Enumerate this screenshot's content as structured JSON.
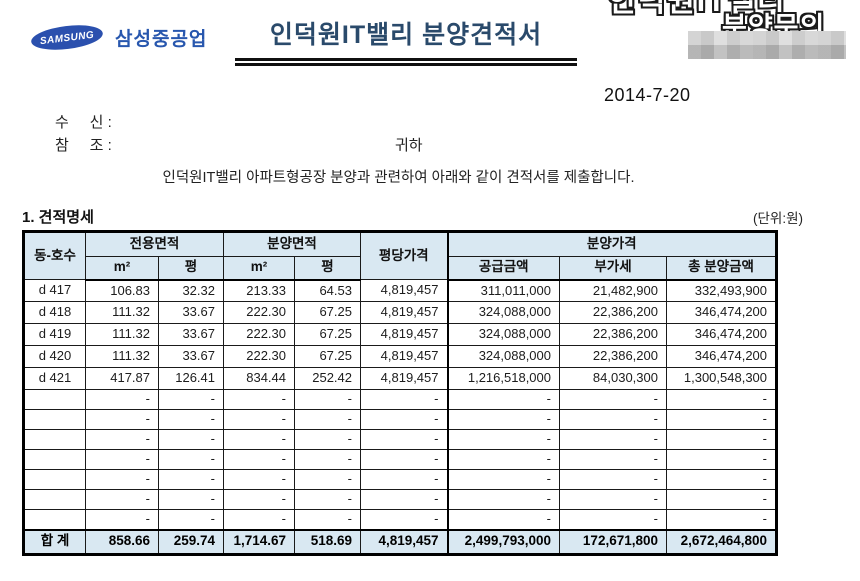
{
  "header": {
    "brand": "SAMSUNG",
    "company": "삼성중공업",
    "title": "인덕원IT밸리 분양견적서",
    "watermark_line1_partial": "인덕원IT밸리",
    "watermark_line2": "분양문의",
    "date": "2014-7-20",
    "to_label": "수     신 :",
    "cc_label": "참     조 :",
    "honorific": "귀하",
    "intro": "인덕원IT밸리 아파트형공장 분양과 관련하여 아래와 같이 견적서를 제출합니다."
  },
  "section": {
    "heading": "1. 견적명세",
    "unit_note": "(단위:원)"
  },
  "table": {
    "header": {
      "unit": "동-호수",
      "exclusive_area": "전용면적",
      "supply_area": "분양면적",
      "price_per_pyeong": "평당가격",
      "sale_price": "분양가격",
      "sqm": "m²",
      "pyeong": "평",
      "supply_amount": "공급금액",
      "vat": "부가세",
      "total_amount": "총 분양금액"
    },
    "rows": [
      [
        "d 417",
        "106.83",
        "32.32",
        "213.33",
        "64.53",
        "4,819,457",
        "311,011,000",
        "21,482,900",
        "332,493,900"
      ],
      [
        "d 418",
        "111.32",
        "33.67",
        "222.30",
        "67.25",
        "4,819,457",
        "324,088,000",
        "22,386,200",
        "346,474,200"
      ],
      [
        "d 419",
        "111.32",
        "33.67",
        "222.30",
        "67.25",
        "4,819,457",
        "324,088,000",
        "22,386,200",
        "346,474,200"
      ],
      [
        "d 420",
        "111.32",
        "33.67",
        "222.30",
        "67.25",
        "4,819,457",
        "324,088,000",
        "22,386,200",
        "346,474,200"
      ],
      [
        "d 421",
        "417.87",
        "126.41",
        "834.44",
        "252.42",
        "4,819,457",
        "1,216,518,000",
        "84,030,300",
        "1,300,548,300"
      ]
    ],
    "placeholder_row": [
      "",
      "-",
      "-",
      "-",
      "-",
      "-",
      "-",
      "-",
      "-"
    ],
    "placeholder_count": 7,
    "total_row": [
      "합   계",
      "858.66",
      "259.74",
      "1,714.67",
      "518.69",
      "4,819,457",
      "2,499,793,000",
      "172,671,800",
      "2,672,464,800"
    ]
  },
  "colors": {
    "accent_navy": "#2a4a6b",
    "samsung_blue": "#2b50ae",
    "table_header_bg": "#d9e8f2"
  }
}
